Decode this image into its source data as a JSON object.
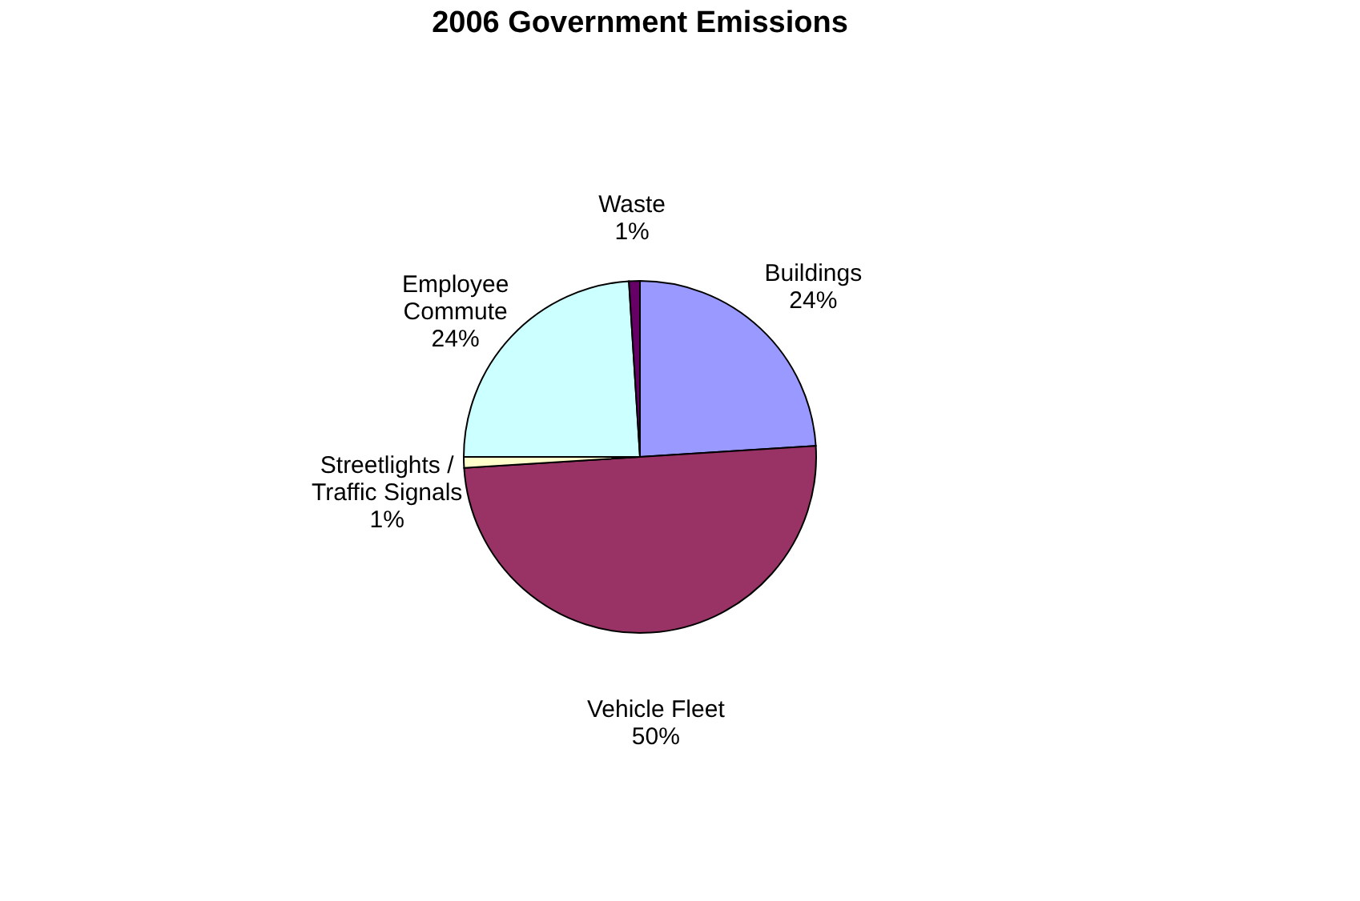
{
  "chart_data": {
    "type": "pie",
    "title": "2006 Government Emissions",
    "categories": [
      "Buildings",
      "Vehicle Fleet",
      "Streetlights / Traffic Signals",
      "Employee Commute",
      "Waste"
    ],
    "values": [
      24,
      50,
      1,
      24,
      1
    ],
    "value_labels": [
      "24%",
      "50%",
      "1%",
      "24%",
      "1%"
    ],
    "colors": [
      "#9999ff",
      "#993366",
      "#ffffcc",
      "#ccffff",
      "#660066"
    ],
    "legend": false
  }
}
